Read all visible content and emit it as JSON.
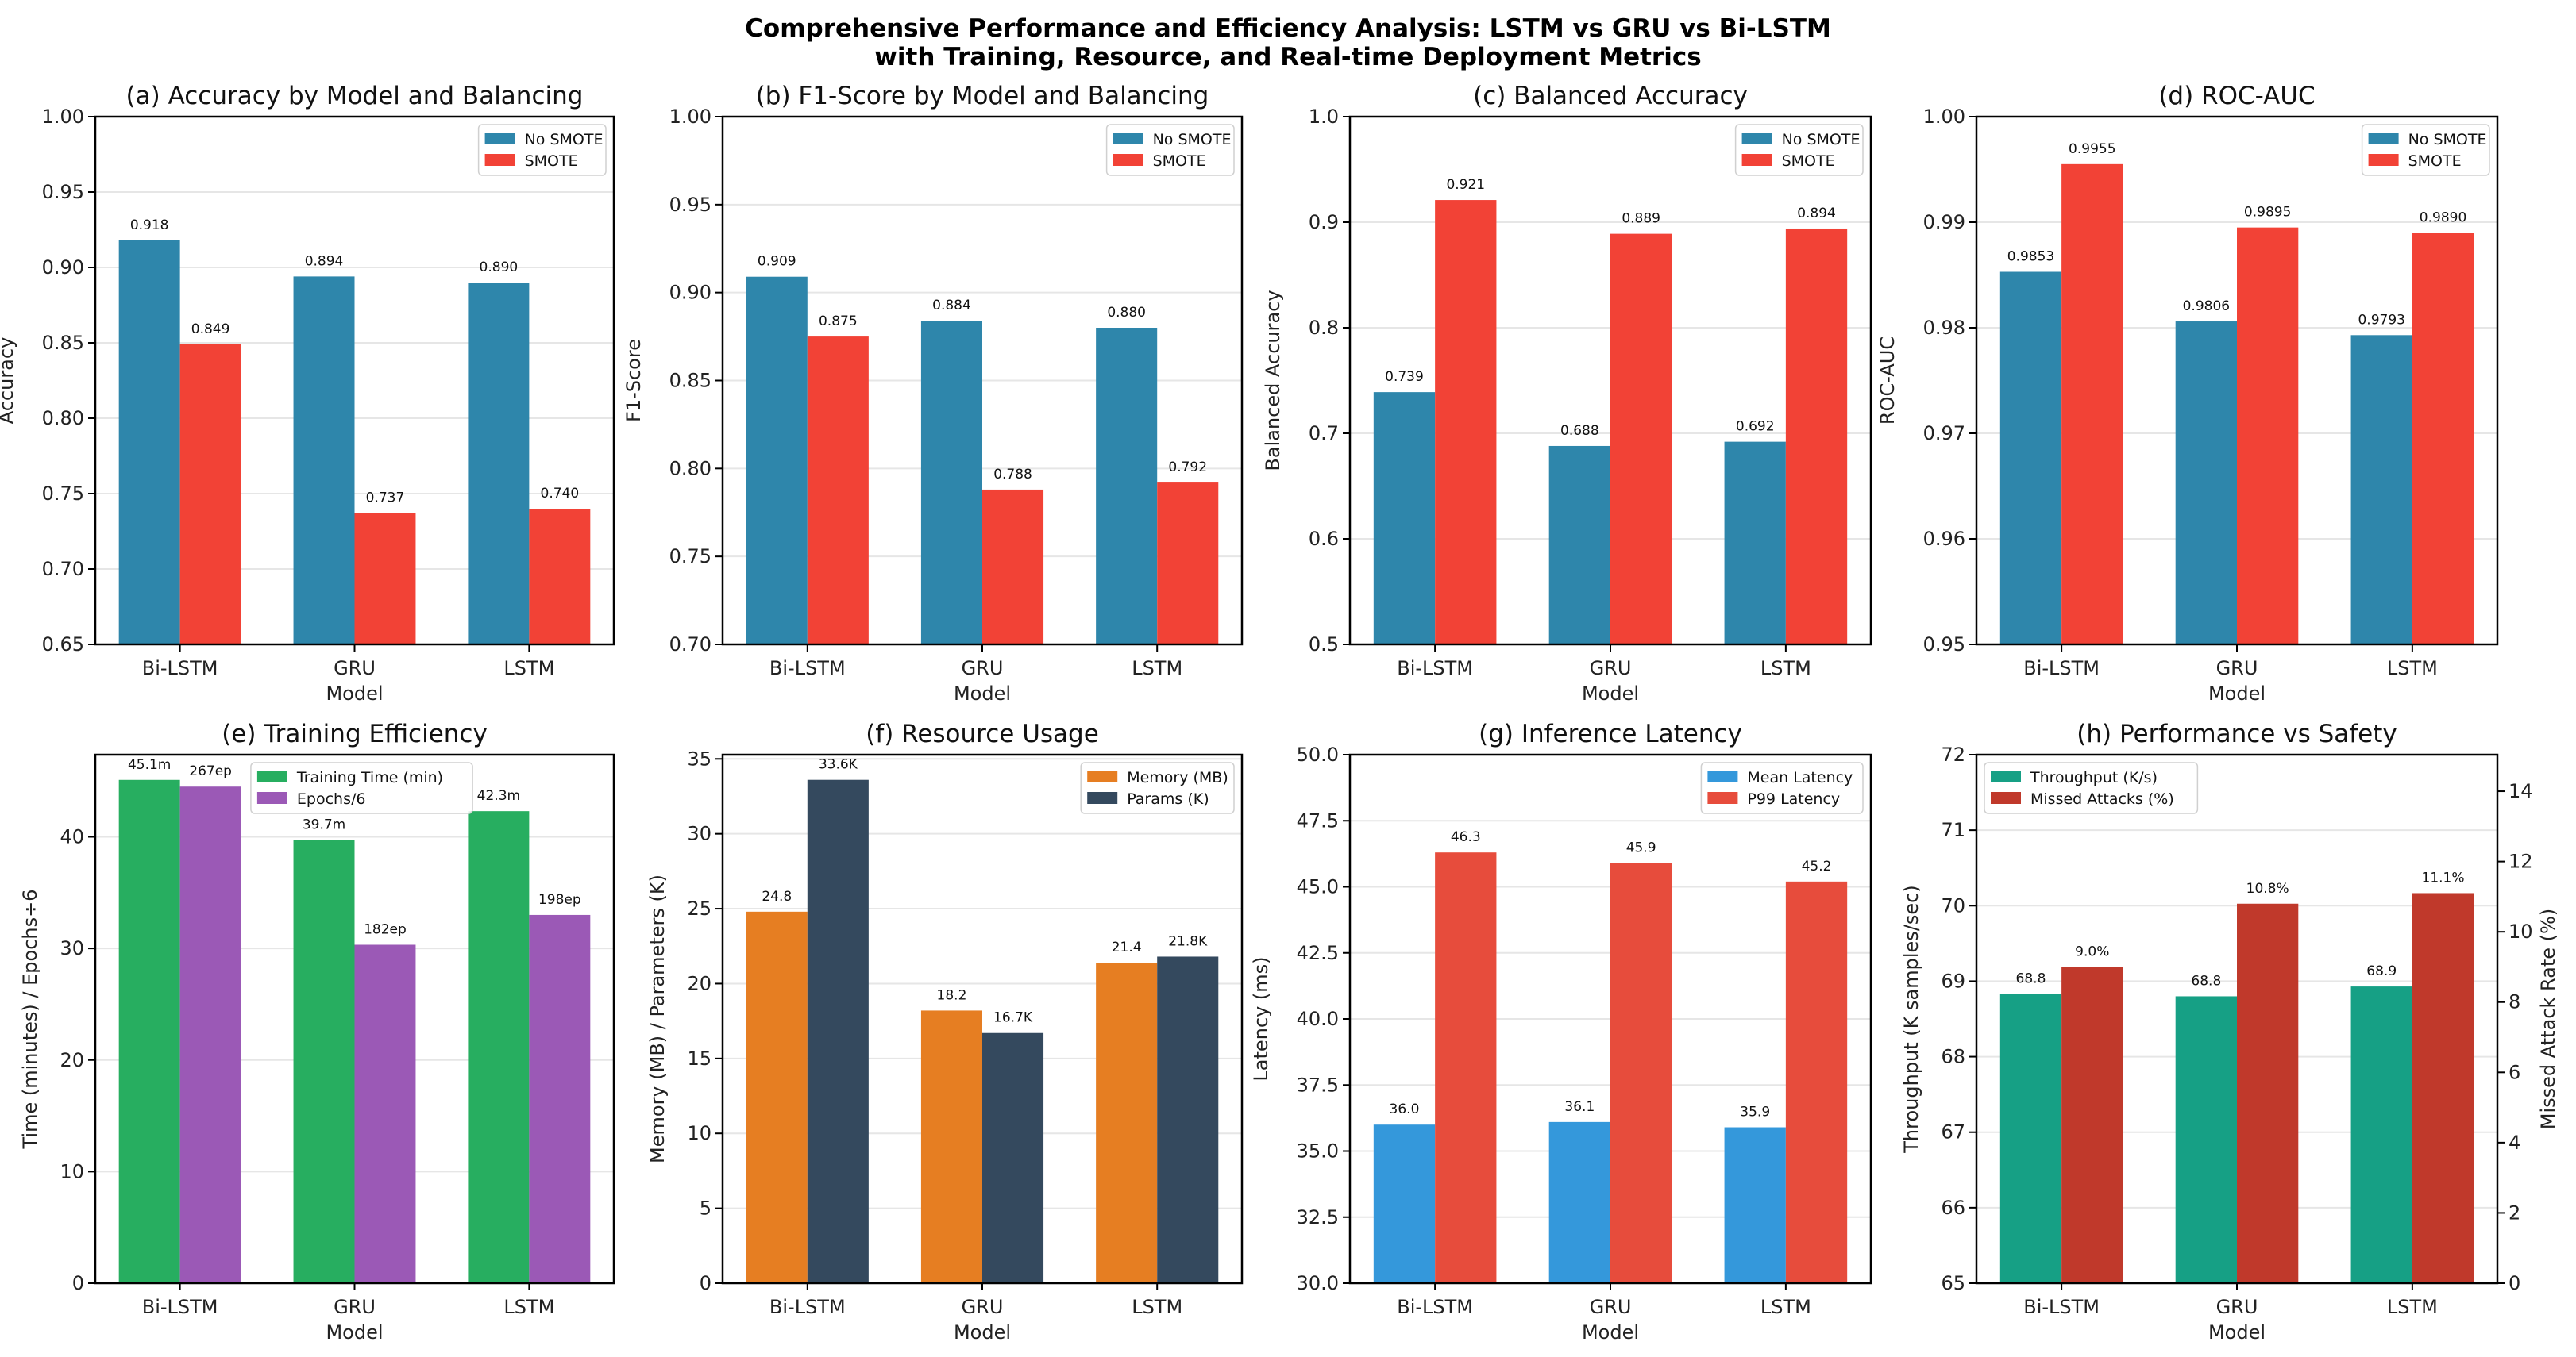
{
  "title": {
    "line1": "Comprehensive Performance and Efficiency Analysis: LSTM vs GRU vs Bi-LSTM",
    "line2": "with Training, Resource, and Real-time Deployment Metrics"
  },
  "chart_data": {
    "type": "bar",
    "categories": [
      "Bi-LSTM",
      "GRU",
      "LSTM"
    ],
    "panels": [
      {
        "title": "(a) Accuracy by Model and Balancing",
        "xlabel": "Model",
        "ylabel": "Accuracy",
        "ylim": [
          0.65,
          1.0
        ],
        "yticks": [
          "0.65",
          "0.70",
          "0.75",
          "0.80",
          "0.85",
          "0.90",
          "0.95",
          "1.00"
        ],
        "legend": "upper-right",
        "grid": true,
        "series": [
          {
            "name": "No SMOTE",
            "color": "#2e86ab",
            "values": [
              0.918,
              0.894,
              0.89
            ],
            "labels": [
              "0.918",
              "0.894",
              "0.890"
            ]
          },
          {
            "name": "SMOTE",
            "color": "#f24236",
            "values": [
              0.849,
              0.737,
              0.74
            ],
            "labels": [
              "0.849",
              "0.737",
              "0.740"
            ]
          }
        ]
      },
      {
        "title": "(b) F1-Score by Model and Balancing",
        "xlabel": "Model",
        "ylabel": "F1-Score",
        "ylim": [
          0.7,
          1.0
        ],
        "yticks": [
          "0.70",
          "0.75",
          "0.80",
          "0.85",
          "0.90",
          "0.95",
          "1.00"
        ],
        "legend": "upper-right",
        "grid": true,
        "series": [
          {
            "name": "No SMOTE",
            "color": "#2e86ab",
            "values": [
              0.909,
              0.884,
              0.88
            ],
            "labels": [
              "0.909",
              "0.884",
              "0.880"
            ]
          },
          {
            "name": "SMOTE",
            "color": "#f24236",
            "values": [
              0.875,
              0.788,
              0.792
            ],
            "labels": [
              "0.875",
              "0.788",
              "0.792"
            ]
          }
        ]
      },
      {
        "title": "(c) Balanced Accuracy",
        "xlabel": "Model",
        "ylabel": "Balanced Accuracy",
        "ylim": [
          0.5,
          1.0
        ],
        "yticks": [
          "0.5",
          "0.6",
          "0.7",
          "0.8",
          "0.9",
          "1.0"
        ],
        "legend": "upper-right",
        "grid": true,
        "series": [
          {
            "name": "No SMOTE",
            "color": "#2e86ab",
            "values": [
              0.739,
              0.688,
              0.692
            ],
            "labels": [
              "0.739",
              "0.688",
              "0.692"
            ]
          },
          {
            "name": "SMOTE",
            "color": "#f24236",
            "values": [
              0.921,
              0.889,
              0.894
            ],
            "labels": [
              "0.921",
              "0.889",
              "0.894"
            ]
          }
        ]
      },
      {
        "title": "(d) ROC-AUC",
        "xlabel": "Model",
        "ylabel": "ROC-AUC",
        "ylim": [
          0.95,
          1.0
        ],
        "yticks": [
          "0.95",
          "0.96",
          "0.97",
          "0.98",
          "0.99",
          "1.00"
        ],
        "legend": "upper-right",
        "grid": true,
        "series": [
          {
            "name": "No SMOTE",
            "color": "#2e86ab",
            "values": [
              0.9853,
              0.9806,
              0.9793
            ],
            "labels": [
              "0.9853",
              "0.9806",
              "0.9793"
            ]
          },
          {
            "name": "SMOTE",
            "color": "#f24236",
            "values": [
              0.9955,
              0.9895,
              0.989
            ],
            "labels": [
              "0.9955",
              "0.9895",
              "0.9890"
            ]
          }
        ]
      },
      {
        "title": "(e) Training Efficiency",
        "xlabel": "Model",
        "ylabel": "Time (minutes) / Epochs÷6",
        "ylim": [
          0,
          47.36
        ],
        "yticks": [
          "0",
          "10",
          "20",
          "30",
          "40"
        ],
        "legend": "upper-center",
        "grid": true,
        "series": [
          {
            "name": "Training Time (min)",
            "color": "#27ae60",
            "values": [
              45.1,
              39.7,
              42.3
            ],
            "labels": [
              "45.1m",
              "39.7m",
              "42.3m"
            ]
          },
          {
            "name": "Epochs/6",
            "color": "#9b59b6",
            "values": [
              44.5,
              30.33,
              33.0
            ],
            "labels": [
              "267ep",
              "182ep",
              "198ep"
            ]
          }
        ]
      },
      {
        "title": "(f) Resource Usage",
        "xlabel": "Model",
        "ylabel": "Memory (MB) / Parameters (K)",
        "ylim": [
          0,
          35.28
        ],
        "yticks": [
          "0",
          "5",
          "10",
          "15",
          "20",
          "25",
          "30",
          "35"
        ],
        "legend": "upper-right",
        "grid": true,
        "series": [
          {
            "name": "Memory (MB)",
            "color": "#e67e22",
            "values": [
              24.8,
              18.2,
              21.4
            ],
            "labels": [
              "24.8",
              "18.2",
              "21.4"
            ]
          },
          {
            "name": "Params (K)",
            "color": "#34495e",
            "values": [
              33.6,
              16.7,
              21.8
            ],
            "labels": [
              "33.6K",
              "16.7K",
              "21.8K"
            ]
          }
        ]
      },
      {
        "title": "(g) Inference Latency",
        "xlabel": "Model",
        "ylabel": "Latency (ms)",
        "ylim": [
          30,
          50
        ],
        "yticks": [
          "30.0",
          "32.5",
          "35.0",
          "37.5",
          "40.0",
          "42.5",
          "45.0",
          "47.5",
          "50.0"
        ],
        "legend": "upper-right",
        "grid": true,
        "series": [
          {
            "name": "Mean Latency",
            "color": "#3498db",
            "values": [
              36.0,
              36.1,
              35.9
            ],
            "labels": [
              "36.0",
              "36.1",
              "35.9"
            ]
          },
          {
            "name": "P99 Latency",
            "color": "#e74c3c",
            "values": [
              46.3,
              45.9,
              45.2
            ],
            "labels": [
              "46.3",
              "45.9",
              "45.2"
            ]
          }
        ]
      },
      {
        "title": "(h) Performance vs Safety",
        "xlabel": "Model",
        "ylabel": "Throughput (K samples/sec)",
        "ylim": [
          65,
          72
        ],
        "yticks": [
          "65",
          "66",
          "67",
          "68",
          "69",
          "70",
          "71",
          "72"
        ],
        "y2label": "Missed Attack Rate (%)",
        "y2lim": [
          0,
          15.04
        ],
        "y2ticks": [
          "0",
          "2",
          "4",
          "6",
          "8",
          "10",
          "12",
          "14"
        ],
        "legend": "upper-left",
        "grid": true,
        "series": [
          {
            "name": "Throughput (K/s)",
            "color": "#16a085",
            "axis": "left",
            "values": [
              68.83,
              68.8,
              68.93
            ],
            "labels": [
              "68.8",
              "68.8",
              "68.9"
            ]
          },
          {
            "name": "Missed Attacks (%)",
            "color": "#c0392b",
            "axis": "right",
            "values": [
              9.0,
              10.8,
              11.1
            ],
            "labels": [
              "9.0%",
              "10.8%",
              "11.1%"
            ]
          }
        ]
      }
    ]
  }
}
